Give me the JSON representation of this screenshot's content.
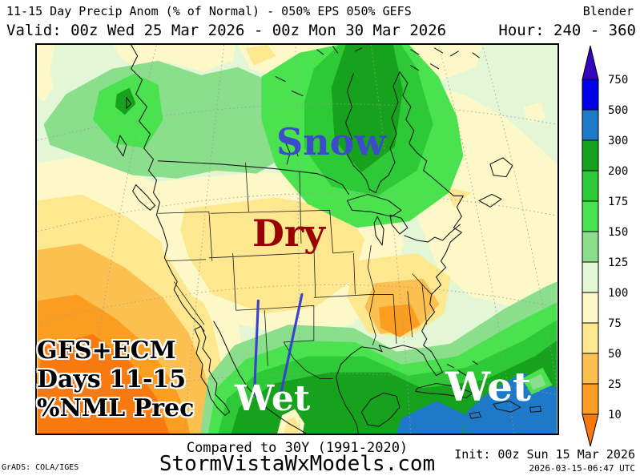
{
  "header": {
    "title": "11-15 Day Precip Anom (% of Normal) - 050% EPS 050% GEFS",
    "model": "Blender",
    "valid": "Valid: 00z Wed 25 Mar 2026 - 00z Mon 30 Mar 2026",
    "hour": "Hour: 240 - 360"
  },
  "map_labels": {
    "snow": "Snow",
    "dry": "Dry",
    "wet_south": "Wet",
    "wet_caribbean": "Wet",
    "annotation_lines": {
      "l1": "GFS+ECM",
      "l2": "Days 11-15",
      "l3": "%NML Prec"
    },
    "colors": {
      "snow": "#3c4bc8",
      "dry": "#990000",
      "wet": "#ffffff",
      "annotation": "#000000",
      "arrow": "#3a43d0"
    }
  },
  "palette": {
    "p10": "#f8790f",
    "p25": "#fb9d20",
    "p50": "#fbc050",
    "p75": "#fee88f",
    "p100": "#fdf8c8",
    "p125": "#e3f6d5",
    "p150": "#8ade8c",
    "p175": "#4ae24e",
    "p200": "#2ec936",
    "p300": "#17a21e",
    "p500": "#1e7ac8",
    "p750": "#0000e8",
    "p750plus": "#3505c0"
  },
  "colorbar": {
    "labels": [
      "750",
      "500",
      "300",
      "200",
      "175",
      "150",
      "125",
      "100",
      "75",
      "50",
      "25",
      "10"
    ],
    "segment_keys": [
      "p750",
      "p500",
      "p300",
      "p200",
      "p175",
      "p150",
      "p125",
      "p100",
      "p75",
      "p50",
      "p25"
    ],
    "arrow_top_key": "p750plus",
    "arrow_bottom_key": "p10"
  },
  "footer": {
    "compare": "Compared to 30Y (1991-2020)",
    "site": "StormVistaWxModels.com",
    "init": "Init: 00z Sun 15 Mar 2026",
    "generated": "2026-03-15-06:47 UTC",
    "credit": "GrADS: COLA/IGES"
  }
}
